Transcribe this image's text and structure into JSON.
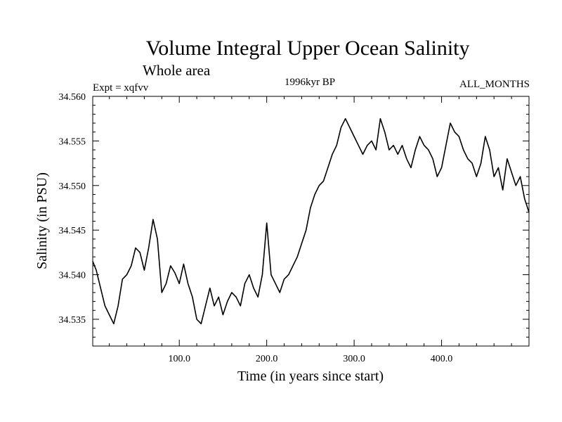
{
  "chart_data": {
    "type": "line",
    "title": "Volume Integral Upper Ocean Salinity",
    "subtitle": "Whole area",
    "expt_label": "Expt = xqfvv",
    "period_label": "1996kyr BP",
    "months_label": "ALL_MONTHS",
    "xlabel": "Time (in years since start)",
    "ylabel": "Salinity (in PSU)",
    "xlim": [
      1,
      500
    ],
    "ylim": [
      34.532,
      34.56
    ],
    "xticks": [
      100,
      200,
      300,
      400
    ],
    "xtick_labels": [
      "100.0",
      "200.0",
      "300.0",
      "400.0"
    ],
    "yticks": [
      34.535,
      34.54,
      34.545,
      34.55,
      34.555,
      34.56
    ],
    "ytick_labels": [
      "34.535",
      "34.540",
      "34.545",
      "34.550",
      "34.555",
      "34.560"
    ],
    "series": [
      {
        "name": "salinity",
        "color": "#000000",
        "x": [
          1,
          5,
          10,
          15,
          20,
          25,
          30,
          35,
          40,
          45,
          50,
          55,
          60,
          65,
          70,
          75,
          80,
          85,
          90,
          95,
          100,
          105,
          110,
          115,
          120,
          125,
          130,
          135,
          140,
          145,
          150,
          155,
          160,
          165,
          170,
          175,
          180,
          185,
          190,
          195,
          200,
          205,
          210,
          215,
          220,
          225,
          230,
          235,
          240,
          245,
          250,
          255,
          260,
          265,
          270,
          275,
          280,
          285,
          290,
          295,
          300,
          305,
          310,
          315,
          320,
          325,
          330,
          335,
          340,
          345,
          350,
          355,
          360,
          365,
          370,
          375,
          380,
          385,
          390,
          395,
          400,
          405,
          410,
          415,
          420,
          425,
          430,
          435,
          440,
          445,
          450,
          455,
          460,
          465,
          470,
          475,
          480,
          485,
          490,
          495,
          500
        ],
        "values": [
          34.5415,
          34.5405,
          34.5385,
          34.5365,
          34.5355,
          34.5345,
          34.5365,
          34.5395,
          34.54,
          34.541,
          34.543,
          34.5425,
          34.5405,
          34.543,
          34.5462,
          34.544,
          34.538,
          34.539,
          34.541,
          34.5402,
          34.539,
          34.5412,
          34.539,
          34.5375,
          34.535,
          34.5345,
          34.5365,
          34.5385,
          34.5365,
          34.5375,
          34.5355,
          34.537,
          34.538,
          34.5375,
          34.5365,
          34.539,
          34.54,
          34.5385,
          34.5375,
          34.54,
          34.5458,
          34.54,
          34.539,
          34.538,
          34.5395,
          34.54,
          34.541,
          34.542,
          34.5435,
          34.545,
          34.5475,
          34.549,
          34.55,
          34.5505,
          34.552,
          34.5535,
          34.5545,
          34.5565,
          34.5575,
          34.5565,
          34.5555,
          34.5545,
          34.5535,
          34.5545,
          34.555,
          34.554,
          34.5575,
          34.556,
          34.554,
          34.5545,
          34.5535,
          34.5545,
          34.553,
          34.552,
          34.554,
          34.5555,
          34.5545,
          34.554,
          34.553,
          34.551,
          34.552,
          34.5545,
          34.557,
          34.556,
          34.5555,
          34.554,
          34.553,
          34.5525,
          34.551,
          34.5525,
          34.5555,
          34.554,
          34.551,
          34.552,
          34.5495,
          34.553,
          34.5515,
          34.55,
          34.551,
          34.5485,
          34.547
        ]
      }
    ]
  }
}
